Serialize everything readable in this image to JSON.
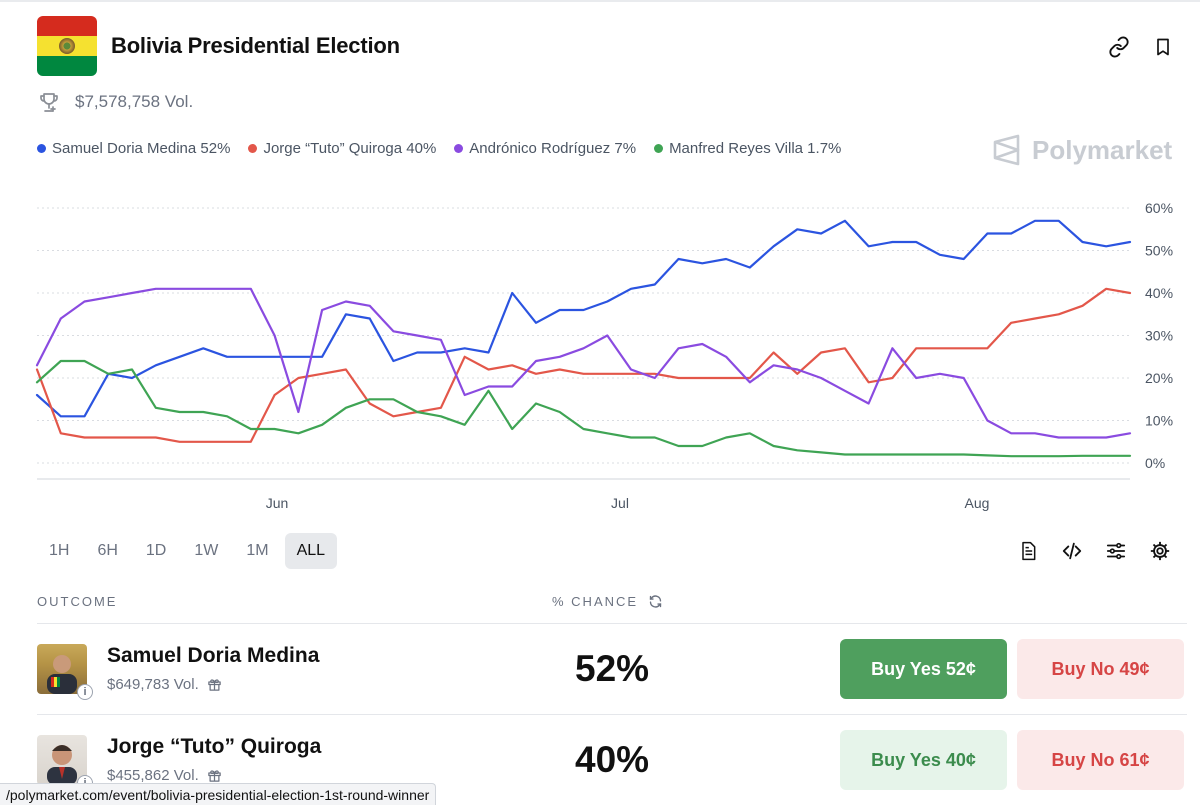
{
  "market": {
    "title": "Bolivia Presidential Election",
    "volume": "$7,578,758 Vol."
  },
  "colors": {
    "blue": "#2b54e0",
    "red": "#e3574a",
    "purple": "#8a4be0",
    "green": "#3fa454",
    "flag_red": "#d52b1e",
    "flag_yellow": "#f5e130",
    "flag_green": "#00873f"
  },
  "brand": {
    "name": "Polymarket",
    "icon": "polymarket-logo-icon"
  },
  "legend": [
    {
      "label": "Samuel Doria Medina 52%",
      "color": "#2b54e0"
    },
    {
      "label": "Jorge “Tuto” Quiroga 40%",
      "color": "#e3574a"
    },
    {
      "label": "Andrónico Rodríguez 7%",
      "color": "#8a4be0"
    },
    {
      "label": "Manfred Reyes Villa 1.7%",
      "color": "#3fa454"
    }
  ],
  "chart_data": {
    "type": "line",
    "x_labels": [
      "Jun",
      "Jul",
      "Aug"
    ],
    "ylim": [
      0,
      60
    ],
    "y_ticks": [
      "60%",
      "50%",
      "40%",
      "30%",
      "20%",
      "10%",
      "0%"
    ],
    "grid": true,
    "series": [
      {
        "name": "Samuel Doria Medina",
        "color": "#2b54e0",
        "values": [
          16,
          11,
          11,
          21,
          20,
          23,
          25,
          27,
          25,
          25,
          25,
          25,
          25,
          35,
          34,
          24,
          26,
          26,
          27,
          26,
          40,
          33,
          36,
          36,
          38,
          41,
          42,
          48,
          47,
          48,
          46,
          51,
          55,
          54,
          57,
          51,
          52,
          52,
          49,
          48,
          54,
          54,
          57,
          57,
          52,
          51,
          52
        ]
      },
      {
        "name": "Jorge “Tuto” Quiroga",
        "color": "#e3574a",
        "values": [
          22,
          7,
          6,
          6,
          6,
          6,
          5,
          5,
          5,
          5,
          16,
          20,
          21,
          22,
          14,
          11,
          12,
          13,
          25,
          22,
          23,
          21,
          22,
          21,
          21,
          21,
          21,
          20,
          20,
          20,
          20,
          26,
          21,
          26,
          27,
          19,
          20,
          27,
          27,
          27,
          27,
          33,
          34,
          35,
          37,
          41,
          40
        ]
      },
      {
        "name": "Andrónico Rodríguez",
        "color": "#8a4be0",
        "values": [
          23,
          34,
          38,
          39,
          40,
          41,
          41,
          41,
          41,
          41,
          30,
          12,
          36,
          38,
          37,
          31,
          30,
          29,
          16,
          18,
          18,
          24,
          25,
          27,
          30,
          22,
          20,
          27,
          28,
          25,
          19,
          23,
          22,
          20,
          17,
          14,
          27,
          20,
          21,
          20,
          10,
          7,
          7,
          6,
          6,
          6,
          7
        ]
      },
      {
        "name": "Manfred Reyes Villa",
        "color": "#3fa454",
        "values": [
          19,
          24,
          24,
          21,
          22,
          13,
          12,
          12,
          11,
          8,
          8,
          7,
          9,
          13,
          15,
          15,
          12,
          11,
          9,
          17,
          8,
          14,
          12,
          8,
          7,
          6,
          6,
          4,
          4,
          6,
          7,
          4,
          3,
          2.5,
          2,
          2,
          2,
          2,
          2,
          2,
          1.8,
          1.6,
          1.6,
          1.6,
          1.7,
          1.7,
          1.7
        ]
      }
    ]
  },
  "ranges": [
    "1H",
    "6H",
    "1D",
    "1W",
    "1M",
    "ALL"
  ],
  "active_range": "ALL",
  "tools": [
    "document-icon",
    "code-icon",
    "sliders-icon",
    "gear-icon"
  ],
  "table": {
    "col_outcome": "OUTCOME",
    "col_chance": "% CHANCE",
    "rows": [
      {
        "name": "Samuel Doria Medina",
        "volume": "$649,783 Vol.",
        "chance": "52%",
        "buy_yes": "Buy Yes 52¢",
        "buy_no": "Buy No 49¢"
      },
      {
        "name": "Jorge “Tuto” Quiroga",
        "volume": "$455,862 Vol.",
        "chance": "40%",
        "buy_yes": "Buy Yes 40¢",
        "buy_no": "Buy No 61¢"
      }
    ]
  },
  "status_url": "/polymarket.com/event/bolivia-presidential-election-1st-round-winner"
}
